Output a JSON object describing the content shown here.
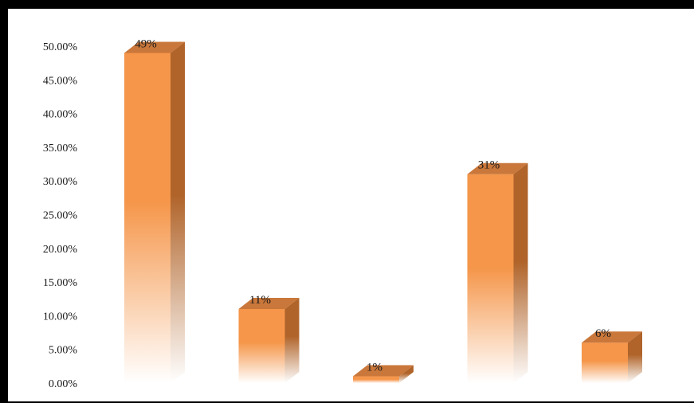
{
  "chart_data": {
    "type": "bar",
    "categories": [
      "",
      "",
      "",
      "",
      ""
    ],
    "values": [
      49,
      11,
      1,
      31,
      6
    ],
    "data_labels": [
      "49%",
      "11%",
      "1%",
      "31%",
      "6%"
    ],
    "ylim": [
      0,
      50
    ],
    "yticks": [
      "0.00%",
      "5.00%",
      "10.00%",
      "15.00%",
      "20.00%",
      "25.00%",
      "30.00%",
      "35.00%",
      "40.00%",
      "45.00%",
      "50.00%"
    ],
    "grid": false,
    "legend": "none",
    "colors": {
      "front": "#F5964A",
      "side": "#B0642A",
      "top": "#C9773A",
      "frame": "#000000"
    }
  }
}
